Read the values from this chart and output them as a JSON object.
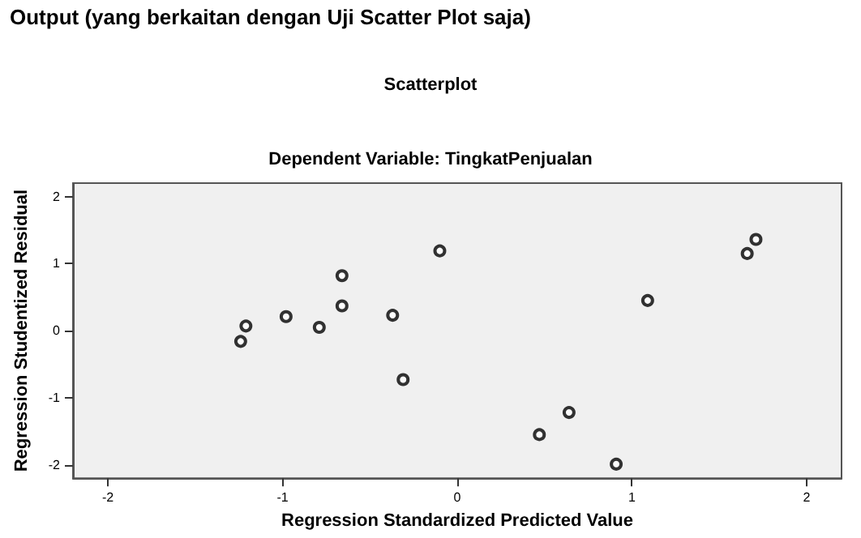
{
  "chart_data": {
    "type": "scatter",
    "title": "Scatterplot",
    "subtitle": "Dependent Variable: TingkatPenjualan",
    "annotations": [
      "Output (yang berkaitan dengan Uji Scatter Plot saja)"
    ],
    "xlabel": "Regression Standardized Predicted Value",
    "ylabel": "Regression Studentized Residual",
    "x": [
      -1.24,
      -1.21,
      -0.98,
      -0.79,
      -0.66,
      -0.66,
      -0.37,
      -0.31,
      -0.1,
      0.64,
      0.47,
      0.91,
      1.09,
      1.66,
      1.71
    ],
    "values": [
      -0.16,
      0.07,
      0.21,
      0.05,
      0.82,
      0.37,
      0.23,
      -0.73,
      1.19,
      -1.22,
      -1.55,
      -1.99,
      0.45,
      1.15,
      1.36
    ],
    "color": "#000000",
    "marker": "circle",
    "xlim": [
      -2.2,
      2.2
    ],
    "ylim": [
      -2.2,
      2.2
    ],
    "xticks": [
      -2,
      -1,
      0,
      1,
      2
    ],
    "yticks": [
      -2,
      -1,
      0,
      1,
      2
    ],
    "grid": false
  }
}
